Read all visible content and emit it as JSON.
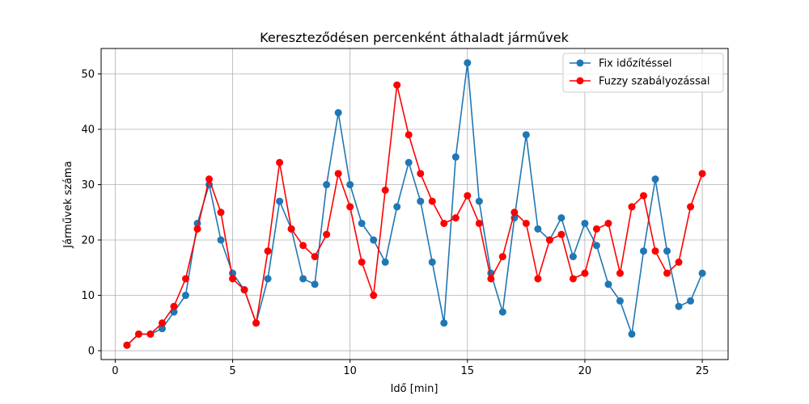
{
  "chart_data": {
    "type": "line",
    "title": "Kereszteződésen percenként áthaladt járművek",
    "xlabel": "Idő [min]",
    "ylabel": "Járművek száma",
    "xlim": [
      -0.6,
      26.1
    ],
    "ylim": [
      -1.6,
      54.6
    ],
    "xticks": [
      0,
      5,
      10,
      15,
      20,
      25
    ],
    "yticks": [
      0,
      10,
      20,
      30,
      40,
      50
    ],
    "grid": true,
    "legend_position": "top-right",
    "x": [
      0.5,
      1.0,
      1.5,
      2.0,
      2.5,
      3.0,
      3.5,
      4.0,
      4.5,
      5.0,
      5.5,
      6.0,
      6.5,
      7.0,
      7.5,
      8.0,
      8.5,
      9.0,
      9.5,
      10.0,
      10.5,
      11.0,
      11.5,
      12.0,
      12.5,
      13.0,
      13.5,
      14.0,
      14.5,
      15.0,
      15.5,
      16.0,
      16.5,
      17.0,
      17.5,
      18.0,
      18.5,
      19.0,
      19.5,
      20.0,
      20.5,
      21.0,
      21.5,
      22.0,
      22.5,
      23.0,
      23.5,
      24.0,
      24.5,
      25.0
    ],
    "series": [
      {
        "name": "Fix időzítéssel",
        "color": "#1f77b4",
        "values": [
          1,
          3,
          3,
          4,
          7,
          10,
          23,
          30,
          20,
          14,
          11,
          5,
          13,
          27,
          22,
          13,
          12,
          30,
          43,
          30,
          23,
          20,
          16,
          26,
          34,
          27,
          16,
          5,
          35,
          52,
          27,
          14,
          7,
          24,
          39,
          22,
          20,
          24,
          17,
          23,
          19,
          12,
          9,
          3,
          18,
          31,
          18,
          8,
          9,
          14
        ]
      },
      {
        "name": "Fuzzy szabályozással",
        "color": "#ff0000",
        "values": [
          1,
          3,
          3,
          5,
          8,
          13,
          22,
          31,
          25,
          13,
          11,
          5,
          18,
          34,
          22,
          19,
          17,
          21,
          32,
          26,
          16,
          10,
          29,
          48,
          39,
          32,
          27,
          23,
          24,
          28,
          23,
          13,
          17,
          25,
          23,
          13,
          20,
          21,
          13,
          14,
          22,
          23,
          14,
          26,
          28,
          18,
          14,
          16,
          26,
          32
        ]
      }
    ]
  }
}
